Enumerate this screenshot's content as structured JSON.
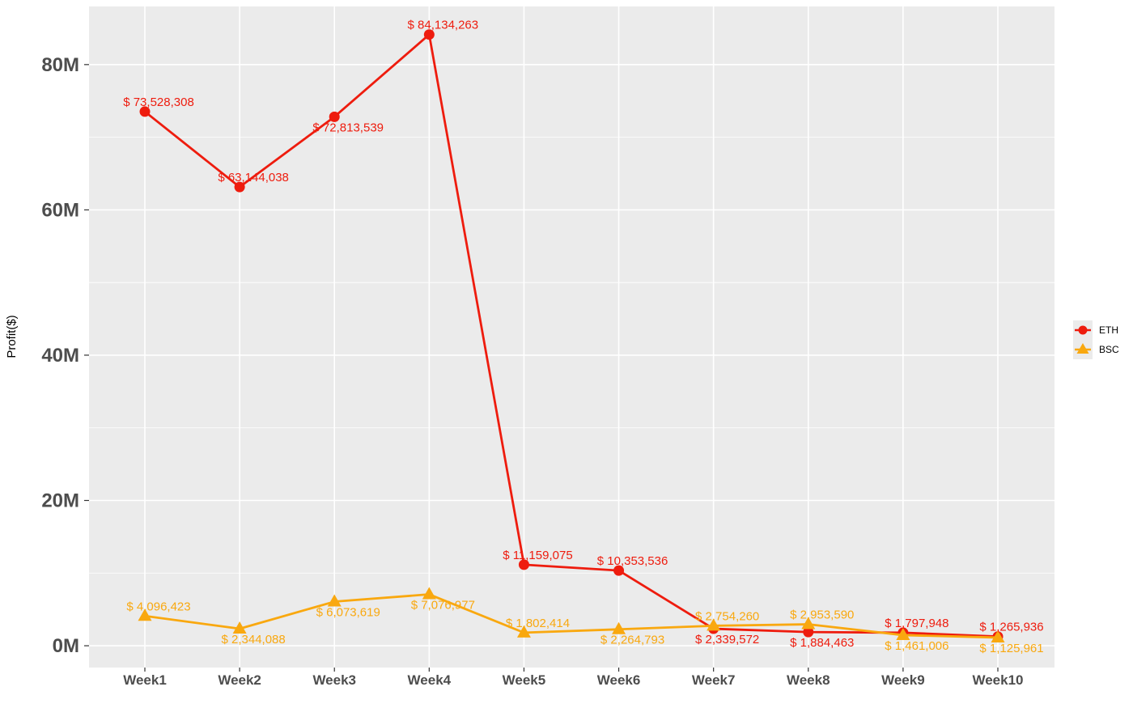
{
  "chart_data": {
    "type": "line",
    "title": "",
    "xlabel": "",
    "ylabel": "Profit($)",
    "categories": [
      "Week1",
      "Week2",
      "Week3",
      "Week4",
      "Week5",
      "Week6",
      "Week7",
      "Week8",
      "Week9",
      "Week10"
    ],
    "ylim": [
      -3000000,
      88000000
    ],
    "y_ticks": [
      0,
      20000000,
      40000000,
      60000000,
      80000000
    ],
    "y_tick_labels": [
      "0M",
      "20M",
      "40M",
      "60M",
      "80M"
    ],
    "grid": true,
    "legend_position": "right",
    "series": [
      {
        "name": "ETH",
        "color": "#ee1c0e",
        "marker": "circle",
        "values": [
          73528308,
          63144038,
          72813539,
          84134263,
          11159075,
          10353536,
          2339572,
          1884463,
          1797948,
          1265936
        ],
        "labels": [
          "$ 73,528,308",
          "$ 63,144,038",
          "$ 72,813,539",
          "$ 84,134,263",
          "$ 11,159,075",
          "$ 10,353,536",
          "$ 2,339,572",
          "$ 1,884,463",
          "$ 1,797,948",
          "$ 1,265,936"
        ]
      },
      {
        "name": "BSC",
        "color": "#f9a80f",
        "marker": "triangle",
        "values": [
          4096423,
          2344088,
          6073619,
          7076977,
          1802414,
          2264793,
          2754260,
          2953590,
          1461006,
          1125961
        ],
        "labels": [
          "$ 4,096,423",
          "$ 2,344,088",
          "$ 6,073,619",
          "$ 7,076,977",
          "$ 1,802,414",
          "$ 2,264,793",
          "$ 2,754,260",
          "$ 2,953,590",
          "$ 1,461,006",
          "$ 1,125,961"
        ]
      }
    ]
  }
}
